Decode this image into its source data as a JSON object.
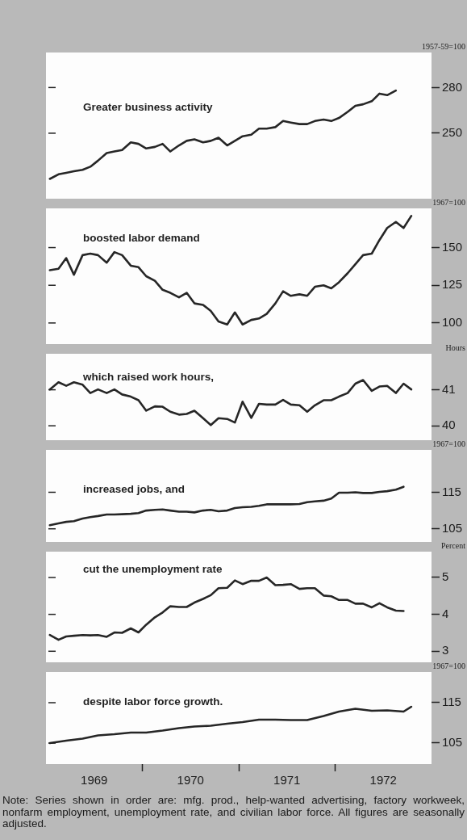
{
  "chart_data": [
    {
      "type": "line",
      "title": "Greater business activity",
      "ylabel": "1957-59=100",
      "color": "#262626",
      "tick_labels": "y",
      "xlim": [
        1969,
        1973
      ],
      "ylim": [
        207,
        303
      ],
      "yticks": [
        250,
        280
      ],
      "x": [
        1969.04,
        1969.13,
        1969.21,
        1969.29,
        1969.38,
        1969.46,
        1969.54,
        1969.63,
        1969.71,
        1969.79,
        1969.88,
        1969.96,
        1970.04,
        1970.13,
        1970.21,
        1970.29,
        1970.38,
        1970.46,
        1970.54,
        1970.63,
        1970.71,
        1970.79,
        1970.88,
        1970.96,
        1971.04,
        1971.13,
        1971.21,
        1971.29,
        1971.38,
        1971.46,
        1971.54,
        1971.63,
        1971.71,
        1971.79,
        1971.88,
        1971.96,
        1972.04,
        1972.13,
        1972.21,
        1972.29,
        1972.38,
        1972.46,
        1972.54,
        1972.63
      ],
      "values": [
        220,
        223,
        224,
        225,
        226,
        228,
        232,
        237,
        238,
        239,
        244,
        243,
        240,
        241,
        243,
        238,
        242,
        245,
        246,
        244,
        245,
        247,
        242,
        245,
        248,
        249,
        253,
        253,
        254,
        258,
        257,
        256,
        256,
        258,
        259,
        258,
        260,
        264,
        268,
        269,
        271,
        276,
        275,
        278
      ]
    },
    {
      "type": "line",
      "title": "boosted labor demand",
      "ylabel": "1967=100",
      "color": "#262626",
      "tick_labels": "y",
      "xlim": [
        1969,
        1973
      ],
      "ylim": [
        86,
        176
      ],
      "yticks": [
        100,
        125,
        150
      ],
      "x": [
        1969.04,
        1969.13,
        1969.21,
        1969.29,
        1969.38,
        1969.46,
        1969.54,
        1969.63,
        1969.71,
        1969.79,
        1969.88,
        1969.96,
        1970.04,
        1970.13,
        1970.21,
        1970.29,
        1970.38,
        1970.46,
        1970.54,
        1970.63,
        1970.71,
        1970.79,
        1970.88,
        1970.96,
        1971.04,
        1971.13,
        1971.21,
        1971.29,
        1971.38,
        1971.46,
        1971.54,
        1971.63,
        1971.71,
        1971.79,
        1971.88,
        1971.96,
        1972.04,
        1972.13,
        1972.21,
        1972.29,
        1972.38,
        1972.46,
        1972.54,
        1972.63,
        1972.71,
        1972.79
      ],
      "values": [
        135,
        136,
        143,
        132,
        145,
        146,
        145,
        140,
        147,
        145,
        138,
        137,
        131,
        128,
        122,
        120,
        117,
        120,
        113,
        112,
        108,
        101,
        99,
        107,
        99,
        102,
        103,
        106,
        113,
        121,
        118,
        119,
        118,
        124,
        125,
        123,
        127,
        133,
        139,
        145,
        146,
        155,
        163,
        167,
        163,
        171
      ]
    },
    {
      "type": "line",
      "title": "which raised work hours,",
      "ylabel": "Hours",
      "color": "#262626",
      "tick_labels": "y",
      "xlim": [
        1969,
        1973
      ],
      "ylim": [
        39.6,
        42
      ],
      "yticks": [
        40,
        41
      ],
      "x": [
        1969.04,
        1969.13,
        1969.21,
        1969.29,
        1969.38,
        1969.46,
        1969.54,
        1969.63,
        1969.71,
        1969.79,
        1969.88,
        1969.96,
        1970.04,
        1970.13,
        1970.21,
        1970.29,
        1970.38,
        1970.46,
        1970.54,
        1970.63,
        1970.71,
        1970.79,
        1970.88,
        1970.96,
        1971.04,
        1971.13,
        1971.21,
        1971.29,
        1971.38,
        1971.46,
        1971.54,
        1971.63,
        1971.71,
        1971.79,
        1971.88,
        1971.96,
        1972.04,
        1972.13,
        1972.21,
        1972.29,
        1972.38,
        1972.46,
        1972.54,
        1972.63,
        1972.71,
        1972.79
      ],
      "values": [
        41.01,
        41.21,
        41.11,
        41.21,
        41.14,
        40.91,
        41.01,
        40.91,
        41.01,
        40.87,
        40.81,
        40.71,
        40.42,
        40.54,
        40.53,
        40.39,
        40.31,
        40.33,
        40.42,
        40.21,
        40.02,
        40.21,
        40.19,
        40.09,
        40.67,
        40.22,
        40.61,
        40.59,
        40.59,
        40.72,
        40.59,
        40.57,
        40.39,
        40.57,
        40.71,
        40.71,
        40.81,
        40.91,
        41.17,
        41.27,
        40.97,
        41.09,
        41.11,
        40.91,
        41.17,
        41.01
      ]
    },
    {
      "type": "line",
      "title": "increased jobs, and",
      "ylabel": "1967=100",
      "color": "#262626",
      "tick_labels": "y",
      "xlim": [
        1969,
        1973
      ],
      "ylim": [
        101.4,
        126.6
      ],
      "yticks": [
        105,
        115
      ],
      "x": [
        1969.04,
        1969.13,
        1969.21,
        1969.29,
        1969.38,
        1969.46,
        1969.54,
        1969.63,
        1969.71,
        1969.79,
        1969.88,
        1969.96,
        1970.04,
        1970.13,
        1970.21,
        1970.29,
        1970.38,
        1970.46,
        1970.54,
        1970.63,
        1970.71,
        1970.79,
        1970.88,
        1970.96,
        1971.04,
        1971.13,
        1971.21,
        1971.29,
        1971.38,
        1971.46,
        1971.54,
        1971.63,
        1971.71,
        1971.79,
        1971.88,
        1971.96,
        1972.04,
        1972.13,
        1972.21,
        1972.29,
        1972.38,
        1972.46,
        1972.54,
        1972.63,
        1972.71
      ],
      "values": [
        106.0,
        106.5,
        106.9,
        107.1,
        107.8,
        108.2,
        108.5,
        108.9,
        108.9,
        109.0,
        109.1,
        109.3,
        110.0,
        110.2,
        110.3,
        110.0,
        109.7,
        109.7,
        109.5,
        110.0,
        110.2,
        109.8,
        110.0,
        110.7,
        110.9,
        111.0,
        111.3,
        111.7,
        111.7,
        111.7,
        111.7,
        111.8,
        112.3,
        112.5,
        112.7,
        113.3,
        114.9,
        114.9,
        115.0,
        114.8,
        114.8,
        115.1,
        115.3,
        115.7,
        116.5
      ]
    },
    {
      "type": "line",
      "title": "cut the unemployment rate",
      "ylabel": "Percent",
      "color": "#262626",
      "tick_labels": "y",
      "xlim": [
        1969,
        1973
      ],
      "ylim": [
        2.7,
        5.7
      ],
      "yticks": [
        3,
        4,
        5
      ],
      "x": [
        1969.04,
        1969.13,
        1969.21,
        1969.29,
        1969.38,
        1969.46,
        1969.54,
        1969.63,
        1969.71,
        1969.79,
        1969.88,
        1969.96,
        1970.04,
        1970.13,
        1970.21,
        1970.29,
        1970.38,
        1970.46,
        1970.54,
        1970.63,
        1970.71,
        1970.79,
        1970.88,
        1970.96,
        1971.04,
        1971.13,
        1971.21,
        1971.29,
        1971.38,
        1971.46,
        1971.54,
        1971.63,
        1971.71,
        1971.79,
        1971.88,
        1971.96,
        1972.04,
        1972.13,
        1972.21,
        1972.29,
        1972.38,
        1972.46,
        1972.54,
        1972.63,
        1972.71
      ],
      "values": [
        3.44,
        3.31,
        3.4,
        3.42,
        3.44,
        3.43,
        3.44,
        3.39,
        3.51,
        3.5,
        3.62,
        3.51,
        3.72,
        3.92,
        4.05,
        4.22,
        4.2,
        4.2,
        4.32,
        4.42,
        4.52,
        4.71,
        4.72,
        4.92,
        4.82,
        4.91,
        4.91,
        5.0,
        4.79,
        4.8,
        4.82,
        4.69,
        4.71,
        4.71,
        4.51,
        4.49,
        4.39,
        4.39,
        4.29,
        4.29,
        4.19,
        4.3,
        4.19,
        4.1,
        4.09
      ]
    },
    {
      "type": "line",
      "title": "despite labor force growth.",
      "ylabel": "1967=100",
      "color": "#262626",
      "xlim": [
        1969,
        1973
      ],
      "ylim": [
        99.8,
        122.6
      ],
      "yticks": [
        105,
        115
      ],
      "xticks": [
        {
          "value": 1969.5,
          "label": "1969"
        },
        {
          "value": 1970,
          "label": null
        },
        {
          "value": 1970.5,
          "label": "1970"
        },
        {
          "value": 1971,
          "label": null
        },
        {
          "value": 1971.5,
          "label": "1971"
        },
        {
          "value": 1972,
          "label": null
        },
        {
          "value": 1972.5,
          "label": "1972"
        }
      ],
      "x": [
        1969.04,
        1969.21,
        1969.38,
        1969.54,
        1969.71,
        1969.88,
        1970.04,
        1970.21,
        1970.38,
        1970.54,
        1970.71,
        1970.88,
        1971.04,
        1971.21,
        1971.38,
        1971.54,
        1971.71,
        1971.88,
        1972.04,
        1972.21,
        1972.38,
        1972.54,
        1972.71,
        1972.79
      ],
      "values": [
        105.0,
        105.6,
        106.1,
        106.9,
        107.2,
        107.6,
        107.6,
        108.1,
        108.7,
        109.1,
        109.3,
        109.8,
        110.2,
        110.8,
        110.8,
        110.7,
        110.7,
        111.7,
        112.8,
        113.5,
        113.0,
        113.1,
        112.8,
        114.0
      ],
      "annotations": [
        "Note:  Series shown in order are: mfg. prod., help-wanted advertising, factory workweek, nonfarm employment, unemployment rate, and civilian labor force. All figures are seasonally adjusted."
      ]
    }
  ]
}
